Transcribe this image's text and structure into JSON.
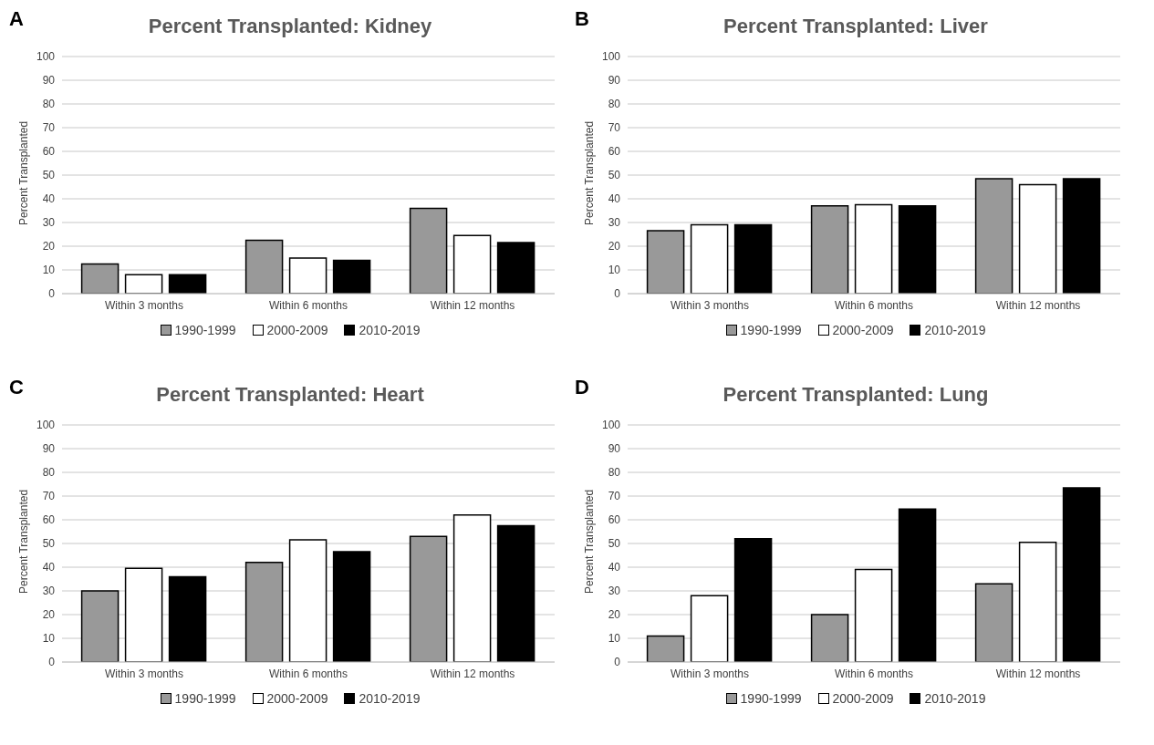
{
  "chart_data": [
    {
      "type": "bar",
      "title": "Percent Transplanted: Kidney",
      "annotations": [
        "A"
      ],
      "ylabel": "Percent Transplanted",
      "categories": [
        "Within 3 months",
        "Within 6 months",
        "Within 12 months"
      ],
      "series": [
        {
          "name": "1990-1999",
          "color": "#999999",
          "values": [
            12.5,
            22.5,
            36
          ]
        },
        {
          "name": "2000-2009",
          "color": "#ffffff",
          "values": [
            8,
            15,
            24.5
          ]
        },
        {
          "name": "2010-2019",
          "color": "#000000",
          "values": [
            8,
            14,
            21.5
          ]
        }
      ],
      "ylim": [
        0,
        100
      ],
      "yticks": [
        0,
        10,
        20,
        30,
        40,
        50,
        60,
        70,
        80,
        90,
        100
      ],
      "grid": "y",
      "legend": "bottom"
    },
    {
      "type": "bar",
      "title": "Percent Transplanted: Liver",
      "annotations": [
        "B"
      ],
      "ylabel": "Percent Transplanted",
      "categories": [
        "Within 3 months",
        "Within 6 months",
        "Within 12 months"
      ],
      "series": [
        {
          "name": "1990-1999",
          "color": "#999999",
          "values": [
            26.5,
            37,
            48.5
          ]
        },
        {
          "name": "2000-2009",
          "color": "#ffffff",
          "values": [
            29,
            37.5,
            46
          ]
        },
        {
          "name": "2010-2019",
          "color": "#000000",
          "values": [
            29,
            37,
            48.5
          ]
        }
      ],
      "ylim": [
        0,
        100
      ],
      "yticks": [
        0,
        10,
        20,
        30,
        40,
        50,
        60,
        70,
        80,
        90,
        100
      ],
      "grid": "y",
      "legend": "bottom"
    },
    {
      "type": "bar",
      "title": "Percent Transplanted: Heart",
      "annotations": [
        "C"
      ],
      "ylabel": "Percent Transplanted",
      "categories": [
        "Within 3 months",
        "Within 6 months",
        "Within 12 months"
      ],
      "series": [
        {
          "name": "1990-1999",
          "color": "#999999",
          "values": [
            30,
            42,
            53
          ]
        },
        {
          "name": "2000-2009",
          "color": "#ffffff",
          "values": [
            39.5,
            51.5,
            62
          ]
        },
        {
          "name": "2010-2019",
          "color": "#000000",
          "values": [
            36,
            46.5,
            57.5
          ]
        }
      ],
      "ylim": [
        0,
        100
      ],
      "yticks": [
        0,
        10,
        20,
        30,
        40,
        50,
        60,
        70,
        80,
        90,
        100
      ],
      "grid": "y",
      "legend": "bottom"
    },
    {
      "type": "bar",
      "title": "Percent Transplanted: Lung",
      "annotations": [
        "D"
      ],
      "ylabel": "Percent Transplanted",
      "categories": [
        "Within 3 months",
        "Within 6 months",
        "Within 12 months"
      ],
      "series": [
        {
          "name": "1990-1999",
          "color": "#999999",
          "values": [
            11,
            20,
            33
          ]
        },
        {
          "name": "2000-2009",
          "color": "#ffffff",
          "values": [
            28,
            39,
            50.5
          ]
        },
        {
          "name": "2010-2019",
          "color": "#000000",
          "values": [
            52,
            64.5,
            73.5
          ]
        }
      ],
      "ylim": [
        0,
        100
      ],
      "yticks": [
        0,
        10,
        20,
        30,
        40,
        50,
        60,
        70,
        80,
        90,
        100
      ],
      "grid": "y",
      "legend": "bottom"
    }
  ]
}
